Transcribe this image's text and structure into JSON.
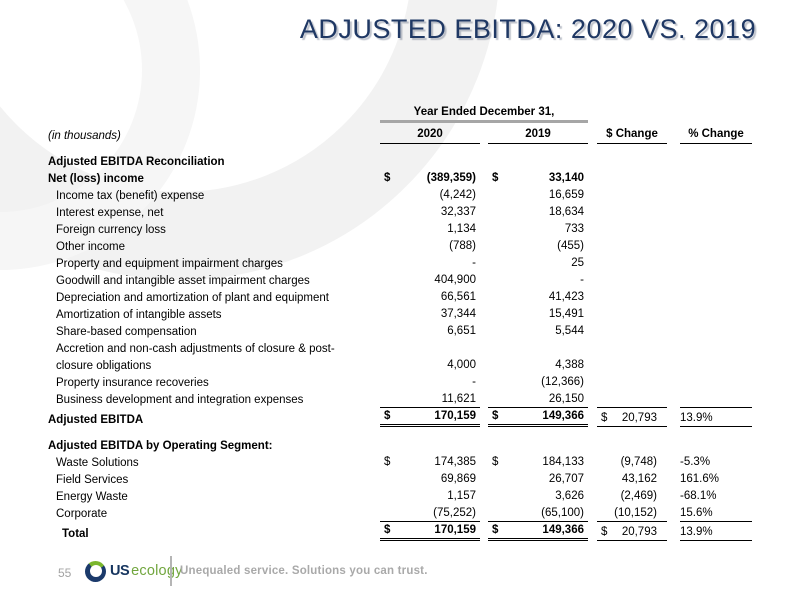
{
  "slide": {
    "title": "ADJUSTED EBITDA: 2020 VS. 2019",
    "page_number": "55",
    "footer": {
      "logo_us": "US",
      "logo_ecology": "ecology",
      "tagline": "Unequaled service. Solutions you can trust."
    }
  },
  "colors": {
    "title_navy": "#1f3864",
    "logo_navy": "#16355f",
    "logo_green": "#71a63e",
    "footer_gray": "#a9a9a9",
    "header_rule_gray": "#a6a6a6"
  },
  "table": {
    "note": "(in thousands)",
    "span_header": "Year Ended December 31,",
    "columns": [
      "2020",
      "2019",
      "$ Change",
      "% Change"
    ],
    "rows": [
      {
        "type": "spacer"
      },
      {
        "type": "section",
        "indent": 0,
        "label": "Adjusted EBITDA Reconciliation"
      },
      {
        "type": "item-bold",
        "indent": 0,
        "label": "Net (loss) income",
        "d20": "$",
        "v20": "(389,359)",
        "d19": "$",
        "v19": "33,140"
      },
      {
        "type": "item",
        "indent": 1,
        "label": "Income tax (benefit) expense",
        "v20": "(4,242)",
        "v19": "16,659"
      },
      {
        "type": "item",
        "indent": 1,
        "label": "Interest expense, net",
        "v20": "32,337",
        "v19": "18,634"
      },
      {
        "type": "item",
        "indent": 1,
        "label": "Foreign currency loss",
        "v20": "1,134",
        "v19": "733"
      },
      {
        "type": "item",
        "indent": 1,
        "label": "Other income",
        "v20": "(788)",
        "v19": "(455)"
      },
      {
        "type": "item",
        "indent": 1,
        "label": "Property and equipment impairment charges",
        "v20": "-",
        "v19": "25"
      },
      {
        "type": "item",
        "indent": 1,
        "label": "Goodwill and intangible asset impairment charges",
        "v20": "404,900",
        "v19": "-"
      },
      {
        "type": "item",
        "indent": 1,
        "label": "Depreciation and amortization of plant and equipment",
        "v20": "66,561",
        "v19": "41,423"
      },
      {
        "type": "item",
        "indent": 1,
        "label": "Amortization of intangible assets",
        "v20": "37,344",
        "v19": "15,491"
      },
      {
        "type": "item",
        "indent": 1,
        "label": "Share-based compensation",
        "v20": "6,651",
        "v19": "5,544"
      },
      {
        "type": "item",
        "indent": 1,
        "label": "Accretion and non-cash adjustments of closure & post-"
      },
      {
        "type": "item",
        "indent": 1,
        "label": "closure obligations",
        "v20": "4,000",
        "v19": "4,388"
      },
      {
        "type": "item",
        "indent": 1,
        "label": "Property insurance recoveries",
        "v20": "-",
        "v19": "(12,366)"
      },
      {
        "type": "item",
        "indent": 1,
        "label": "Business development and integration expenses",
        "v20": "11,621",
        "v19": "26,150"
      },
      {
        "type": "total",
        "indent": 0,
        "label": "Adjusted EBITDA",
        "d20": "$",
        "v20": "170,159",
        "d19": "$",
        "v19": "149,366",
        "dch": "$",
        "vch": "20,793",
        "vpc": "13.9%"
      },
      {
        "type": "spacer"
      },
      {
        "type": "section",
        "indent": 0,
        "label": "Adjusted EBITDA by Operating Segment:"
      },
      {
        "type": "item",
        "indent": 1,
        "label": "Waste Solutions",
        "d20": "$",
        "v20": "174,385",
        "d19": "$",
        "v19": "184,133",
        "vch": "(9,748)",
        "vpc": "-5.3%"
      },
      {
        "type": "item",
        "indent": 1,
        "label": "Field Services",
        "v20": "69,869",
        "v19": "26,707",
        "vch": "43,162",
        "vpc": "161.6%"
      },
      {
        "type": "item",
        "indent": 1,
        "label": "Energy Waste",
        "v20": "1,157",
        "v19": "3,626",
        "vch": "(2,469)",
        "vpc": "-68.1%"
      },
      {
        "type": "item",
        "indent": 1,
        "label": "Corporate",
        "v20": "(75,252)",
        "v19": "(65,100)",
        "vch": "(10,152)",
        "vpc": "15.6%"
      },
      {
        "type": "total",
        "indent": 2,
        "label": "Total",
        "d20": "$",
        "v20": "170,159",
        "d19": "$",
        "v19": "149,366",
        "dch": "$",
        "vch": "20,793",
        "vpc": "13.9%"
      }
    ]
  }
}
